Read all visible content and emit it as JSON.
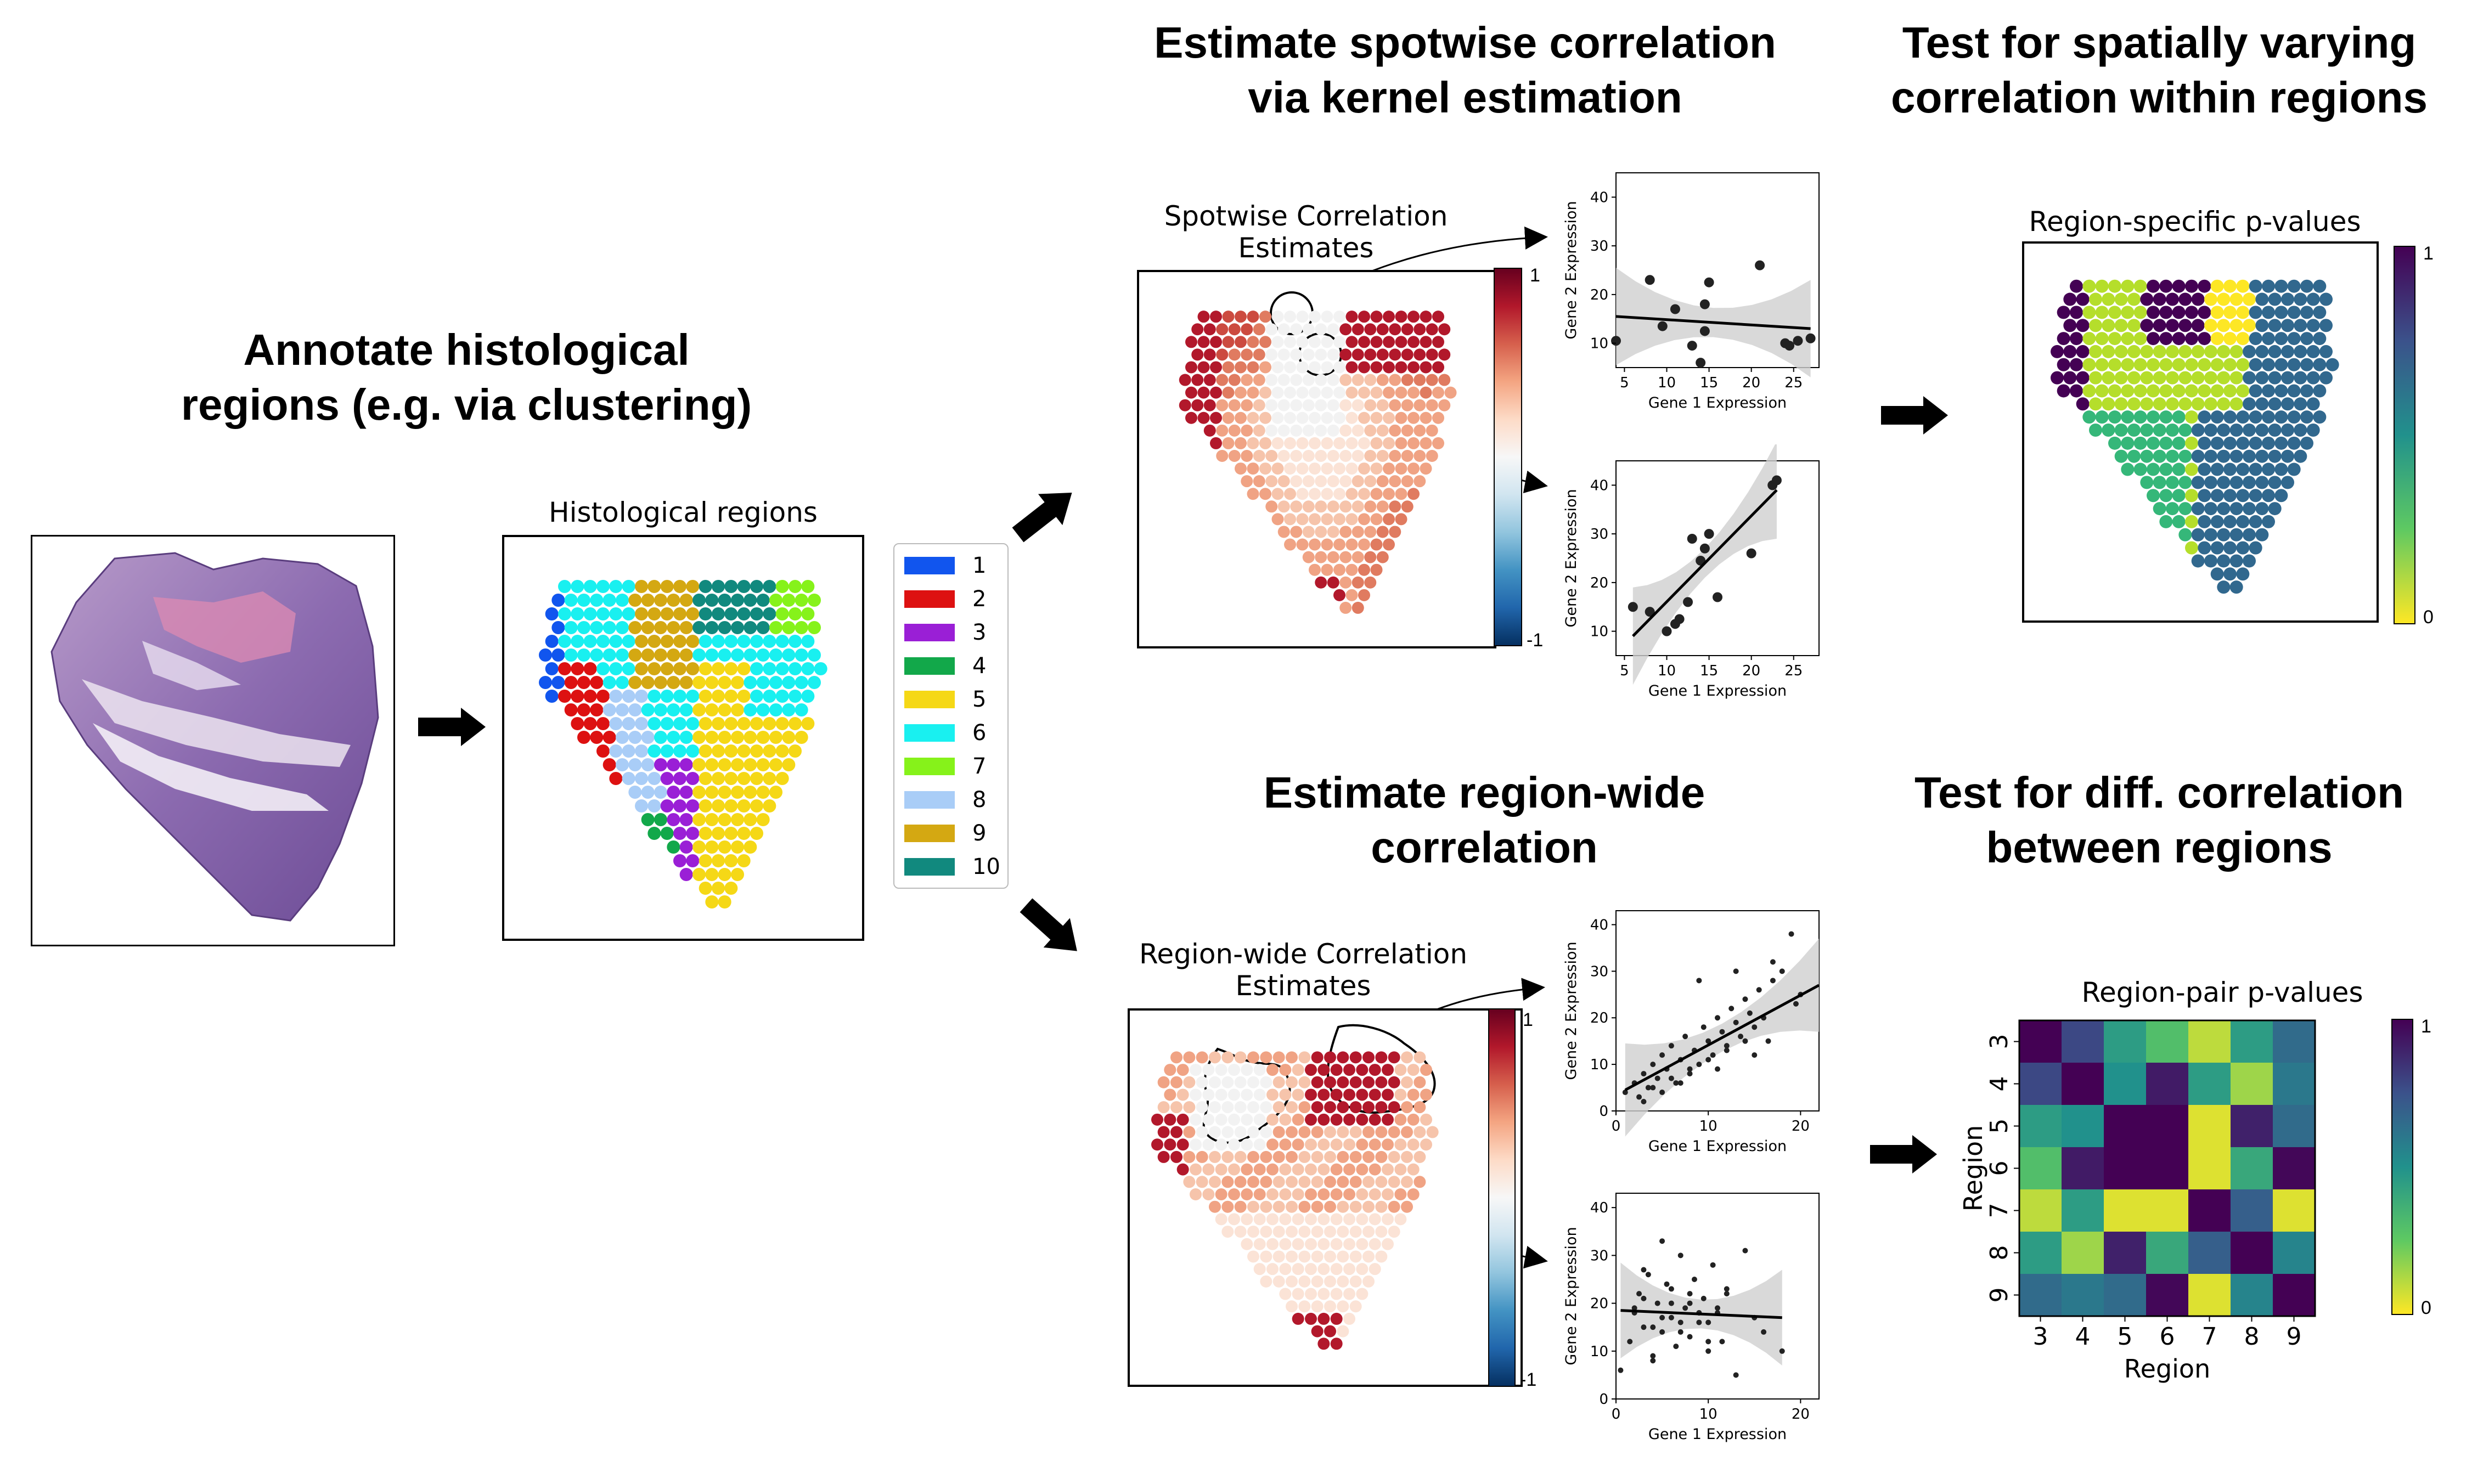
{
  "headings": {
    "annotate": "Annotate histological\nregions (e.g. via clustering)",
    "spotwise": "Estimate spotwise correlation\nvia kernel estimation",
    "spatial_test": "Test for spatially varying\ncorrelation within regions",
    "regionwide": "Estimate region-wide\ncorrelation",
    "diff_test": "Test for diff. correlation\nbetween regions"
  },
  "panels": {
    "histological_regions": "Histological regions",
    "spotwise_estimates": "Spotwise Correlation\nEstimates",
    "region_pvalues": "Region-specific p-values",
    "regionwide_estimates": "Region-wide Correlation\nEstimates",
    "pair_pvalues": "Region-pair p-values"
  },
  "legend": {
    "items": [
      {
        "label": "1",
        "color": "#1155ee"
      },
      {
        "label": "2",
        "color": "#dd1111"
      },
      {
        "label": "3",
        "color": "#9a1fd6"
      },
      {
        "label": "4",
        "color": "#12a84a"
      },
      {
        "label": "5",
        "color": "#f5d816"
      },
      {
        "label": "6",
        "color": "#19f0f0"
      },
      {
        "label": "7",
        "color": "#86f21a"
      },
      {
        "label": "8",
        "color": "#a9cdf7"
      },
      {
        "label": "9",
        "color": "#d4a812"
      },
      {
        "label": "10",
        "color": "#11897e"
      }
    ]
  },
  "colorbars": {
    "redblue": {
      "top": "1",
      "bottom": "-1"
    },
    "viridis": {
      "top": "1",
      "bottom": "0"
    }
  },
  "chart_data": [
    {
      "type": "scatter",
      "id": "spotwise-uncorrelated",
      "xlabel": "Gene 1 Expression",
      "ylabel": "Gene 2 Expression",
      "xticks": [
        "5",
        "10",
        "15",
        "20",
        "25"
      ],
      "yticks": [
        "10",
        "20",
        "30",
        "40"
      ],
      "xlim": [
        4,
        28
      ],
      "ylim": [
        5,
        45
      ],
      "x": [
        4,
        8,
        9.5,
        11,
        13,
        14,
        14.5,
        14.5,
        15,
        21,
        24,
        24.5,
        25.5,
        27
      ],
      "y": [
        10.5,
        23,
        13.5,
        17,
        9.5,
        6,
        12.5,
        18,
        22.5,
        26,
        10,
        9.5,
        10.5,
        11
      ],
      "fit": [
        [
          4,
          15.5
        ],
        [
          27,
          13
        ]
      ]
    },
    {
      "type": "scatter",
      "id": "spotwise-correlated",
      "xlabel": "Gene 1 Expression",
      "ylabel": "Gene 2 Expression",
      "xticks": [
        "5",
        "10",
        "15",
        "20",
        "25"
      ],
      "yticks": [
        "10",
        "20",
        "30",
        "40"
      ],
      "xlim": [
        4,
        28
      ],
      "ylim": [
        5,
        45
      ],
      "x": [
        6,
        8,
        10,
        11,
        11.5,
        12.5,
        13,
        14,
        14.5,
        15,
        16,
        20,
        22.5,
        23
      ],
      "y": [
        15,
        14,
        10,
        11.5,
        12.5,
        16,
        29,
        24.5,
        27,
        30,
        17,
        26,
        40,
        41
      ],
      "fit": [
        [
          6,
          9
        ],
        [
          23,
          39
        ]
      ]
    },
    {
      "type": "scatter",
      "id": "regionwide-correlated",
      "xlabel": "Gene 1 Expression",
      "ylabel": "Gene 2 Expression",
      "xticks": [
        "0",
        "10",
        "20"
      ],
      "yticks": [
        "0",
        "10",
        "20",
        "30",
        "40"
      ],
      "xlim": [
        0,
        22
      ],
      "ylim": [
        0,
        43
      ],
      "x": [
        1,
        2,
        2.5,
        3,
        3.5,
        4,
        4.5,
        5,
        5.5,
        6,
        6.5,
        7,
        7.5,
        8,
        8.5,
        9,
        9.5,
        10,
        10.5,
        11,
        11.5,
        12,
        12.5,
        13,
        13.5,
        14,
        14.5,
        15,
        15.5,
        16,
        16.5,
        17,
        18,
        19,
        19.5,
        20,
        3,
        5,
        7,
        9,
        11,
        13,
        15,
        17,
        4,
        6,
        8,
        10,
        12,
        14
      ],
      "y": [
        4,
        6,
        3,
        8,
        5,
        10,
        7,
        12,
        9,
        14,
        6,
        11,
        16,
        8,
        13,
        10,
        18,
        15,
        12,
        20,
        17,
        14,
        22,
        19,
        16,
        24,
        21,
        18,
        26,
        20,
        15,
        28,
        30,
        38,
        23,
        25,
        2,
        4,
        6,
        28,
        9,
        30,
        12,
        32,
        5,
        7,
        9,
        11,
        13,
        15
      ],
      "fit": [
        [
          1,
          4.5
        ],
        [
          22,
          27
        ]
      ]
    },
    {
      "type": "scatter",
      "id": "regionwide-uncorrelated",
      "xlabel": "Gene 1 Expression",
      "ylabel": "Gene 2 Expression",
      "xticks": [
        "0",
        "10",
        "20"
      ],
      "yticks": [
        "0",
        "10",
        "20",
        "30",
        "40"
      ],
      "xlim": [
        0,
        22
      ],
      "ylim": [
        0,
        43
      ],
      "x": [
        0.5,
        1.5,
        2,
        2.5,
        3,
        3.5,
        4,
        4.5,
        5,
        5.5,
        6,
        6.5,
        7,
        7.5,
        8,
        8.5,
        9,
        9.5,
        10,
        10.5,
        11,
        11.5,
        12,
        13,
        14,
        15,
        16,
        18,
        3,
        4,
        5,
        6,
        7,
        8,
        9,
        10,
        2,
        3,
        4,
        5,
        6,
        7,
        8,
        9,
        10,
        11,
        12
      ],
      "y": [
        6,
        12,
        18,
        22,
        15,
        26,
        9,
        20,
        14,
        24,
        17,
        11,
        30,
        19,
        13,
        25,
        16,
        21,
        10,
        28,
        18,
        12,
        23,
        5,
        31,
        17,
        14,
        10,
        27,
        8,
        33,
        20,
        16,
        22,
        18,
        12,
        19,
        21,
        15,
        17,
        23,
        14,
        20,
        18,
        16,
        19,
        22
      ],
      "fit": [
        [
          0.5,
          18.5
        ],
        [
          18,
          17
        ]
      ]
    },
    {
      "type": "heatmap",
      "id": "region-pair-pvalues",
      "xlabel": "Region",
      "ylabel": "Region",
      "categories": [
        "3",
        "4",
        "5",
        "6",
        "7",
        "8",
        "9"
      ],
      "values": [
        [
          1.0,
          0.78,
          0.45,
          0.3,
          0.1,
          0.45,
          0.65
        ],
        [
          0.78,
          1.0,
          0.5,
          0.92,
          0.45,
          0.15,
          0.6
        ],
        [
          0.45,
          0.5,
          1.0,
          1.0,
          0.05,
          0.9,
          0.65
        ],
        [
          0.3,
          0.92,
          1.0,
          1.0,
          0.05,
          0.4,
          0.98
        ],
        [
          0.1,
          0.45,
          0.05,
          0.05,
          1.0,
          0.7,
          0.05
        ],
        [
          0.45,
          0.15,
          0.9,
          0.4,
          0.7,
          1.0,
          0.55
        ],
        [
          0.65,
          0.6,
          0.65,
          0.98,
          0.05,
          0.55,
          1.0
        ]
      ]
    }
  ]
}
